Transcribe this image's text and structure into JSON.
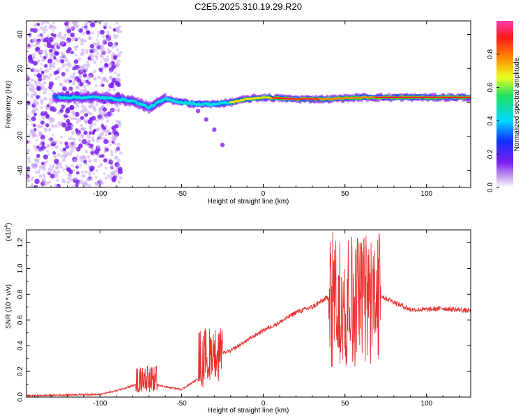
{
  "title": "C2E5.2025.310.19.29.R20",
  "colors": {
    "snr_line": "#e8312f",
    "ridge": [
      "#8a1cf0",
      "#1a7bff",
      "#00e0e0",
      "#36d236",
      "#ffe000",
      "#ff7a00",
      "#ff1a1a"
    ]
  },
  "chart_data": [
    {
      "type": "heatmap",
      "title": "C2E5.2025.310.19.29.R20",
      "xlabel": "Height of straight line (km)",
      "ylabel": "Frequency (Hz)",
      "xlim": [
        -145,
        127
      ],
      "ylim": [
        -50,
        48
      ],
      "xticks": [
        -100,
        -50,
        0,
        50,
        100
      ],
      "yticks": [
        40,
        20,
        0,
        -20,
        -40
      ],
      "colorbar": {
        "label": "Normalized spectral amplitude",
        "range": [
          0,
          1
        ],
        "ticks": [
          "0.0",
          "0.2",
          "0.4",
          "0.6",
          "0.8"
        ],
        "colormap": "rainbow (purple → blue → cyan → green → yellow → red)"
      },
      "ridge_frequency": {
        "x": [
          -120,
          -100,
          -80,
          -70,
          -60,
          -50,
          -40,
          -30,
          -20,
          -10,
          0,
          20,
          40,
          60,
          80,
          100,
          120
        ],
        "y": [
          3,
          3,
          1,
          -3,
          2,
          0,
          -1,
          -1,
          0,
          2,
          3,
          2,
          2,
          3,
          3,
          3,
          3
        ]
      },
      "noise_region": {
        "x_from": -145,
        "x_to": -95
      },
      "side_branch": {
        "x": [
          -40,
          -35,
          -30,
          -25
        ],
        "y": [
          -5,
          -10,
          -16,
          -25
        ]
      }
    },
    {
      "type": "line",
      "xlabel": "Height of straight line (km)",
      "ylabel": "SNR (10 * v/v)",
      "y_multiplier": "(x10^4)",
      "xlim": [
        -145,
        127
      ],
      "ylim": [
        0,
        1.3
      ],
      "xticks": [
        -100,
        -50,
        0,
        50,
        100
      ],
      "yticks": [
        "0.0",
        "0.2",
        "0.4",
        "0.6",
        "0.8",
        "1.0",
        "1.2"
      ],
      "envelope": {
        "x": [
          -145,
          -110,
          -100,
          -90,
          -80,
          -70,
          -60,
          -50,
          -40,
          -35,
          -30,
          -20,
          -10,
          0,
          10,
          20,
          30,
          40,
          50,
          60,
          70,
          80,
          90,
          100,
          110,
          127
        ],
        "y": [
          0.01,
          0.02,
          0.02,
          0.05,
          0.09,
          0.11,
          0.08,
          0.06,
          0.14,
          0.3,
          0.32,
          0.36,
          0.44,
          0.52,
          0.58,
          0.66,
          0.7,
          0.78,
          0.78,
          0.8,
          0.8,
          0.74,
          0.68,
          0.68,
          0.69,
          0.67
        ]
      },
      "spiky_regions": [
        {
          "x_from": -78,
          "x_to": -65,
          "peak": 0.25
        },
        {
          "x_from": -40,
          "x_to": -25,
          "peak": 0.55
        },
        {
          "x_from": 40,
          "x_to": 72,
          "peak": 1.3
        }
      ]
    }
  ]
}
